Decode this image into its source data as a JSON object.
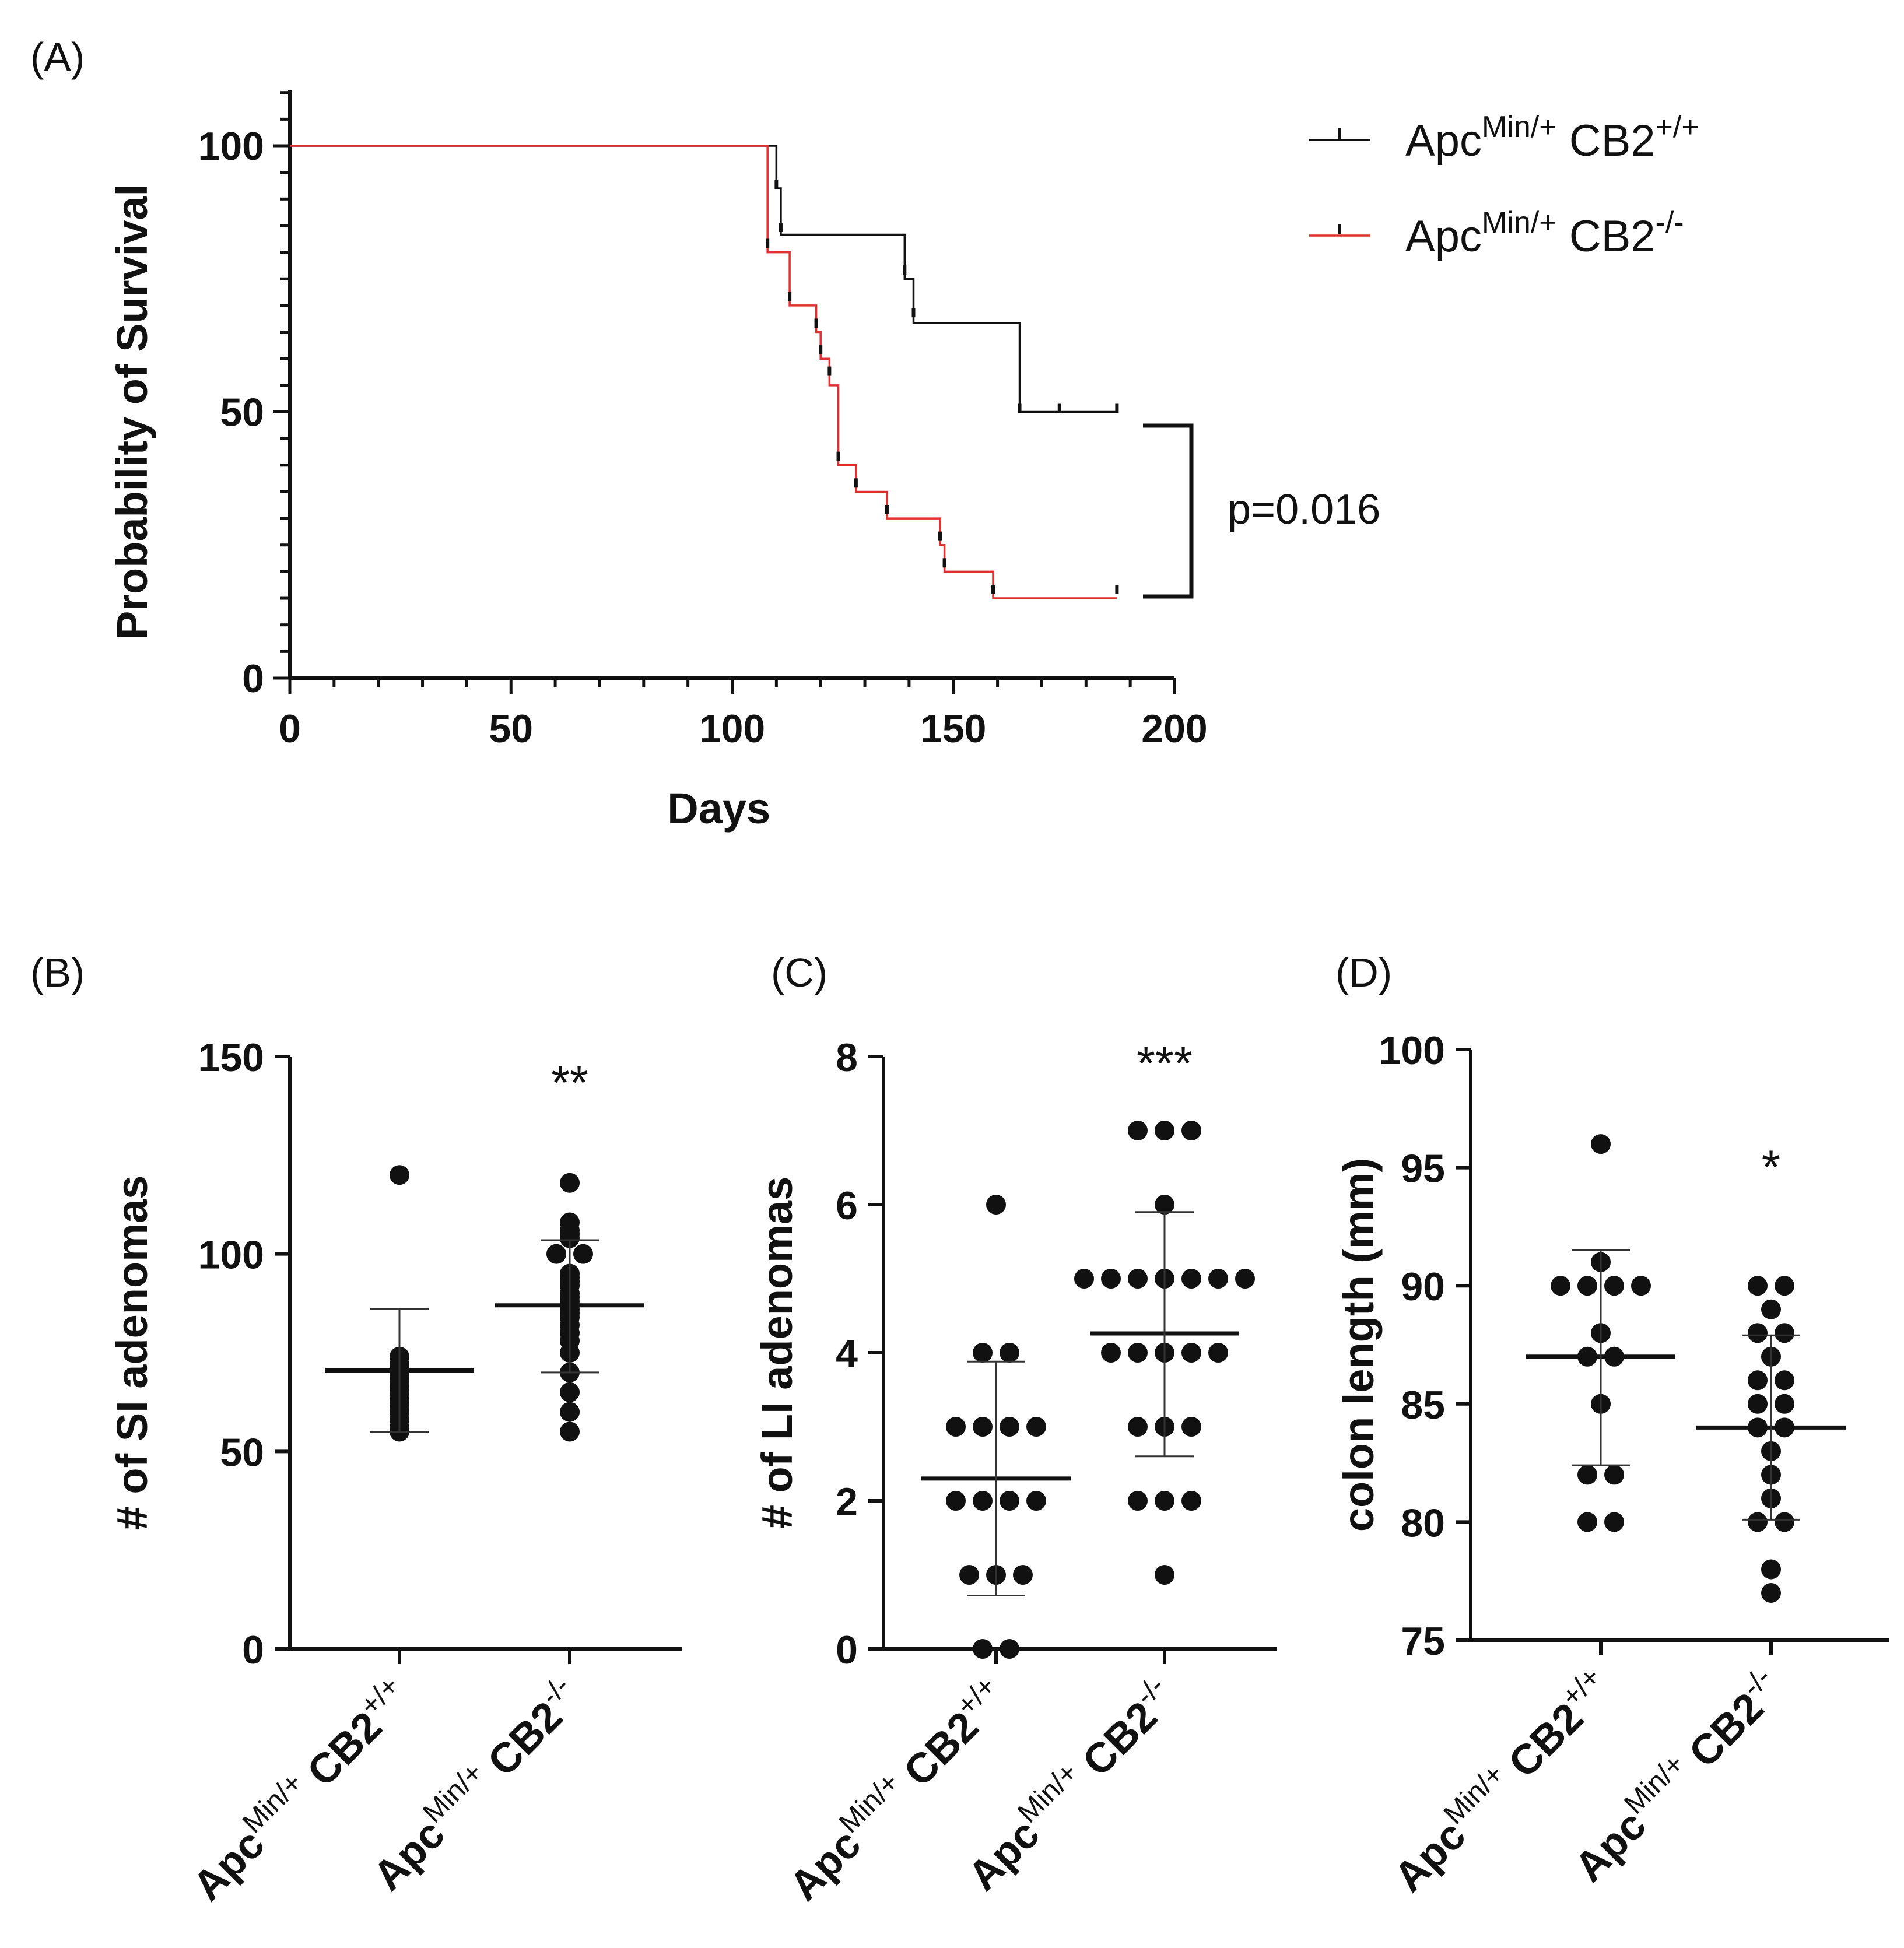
{
  "chart_data": [
    {
      "panel": "(A)",
      "type": "line",
      "subtype": "kaplan-meier",
      "xlabel": "Days",
      "ylabel": "Probability of Survival",
      "xlim": [
        0,
        200
      ],
      "ylim": [
        0,
        100
      ],
      "xticks": [
        0,
        50,
        100,
        150,
        200
      ],
      "yticks": [
        0,
        50,
        100
      ],
      "legend": "top-right",
      "annotation": "p=0.016",
      "series": [
        {
          "name_base": "Apc",
          "name_sup1": "Min/+",
          "name_mid": " CB2",
          "name_sup2": "+/+",
          "color": "#111111",
          "steps": [
            [
              0,
              100
            ],
            [
              110,
              100
            ],
            [
              110,
              92
            ],
            [
              111,
              92
            ],
            [
              111,
              83.3
            ],
            [
              139,
              83.3
            ],
            [
              139,
              75
            ],
            [
              141,
              75
            ],
            [
              141,
              66.7
            ],
            [
              165,
              66.7
            ],
            [
              165,
              50
            ],
            [
              187,
              50
            ]
          ],
          "censored": [
            [
              110,
              92
            ],
            [
              111,
              84
            ],
            [
              139,
              76
            ],
            [
              141,
              68
            ],
            [
              165,
              50
            ],
            [
              174,
              50
            ],
            [
              187,
              50
            ]
          ]
        },
        {
          "name_base": "Apc",
          "name_sup1": "Min/+",
          "name_mid": " CB2",
          "name_sup2": "-/-",
          "color": "#e03030",
          "steps": [
            [
              0,
              100
            ],
            [
              108,
              100
            ],
            [
              108,
              80
            ],
            [
              113,
              80
            ],
            [
              113,
              70
            ],
            [
              119,
              70
            ],
            [
              119,
              65
            ],
            [
              120,
              65
            ],
            [
              120,
              60
            ],
            [
              122,
              60
            ],
            [
              122,
              55
            ],
            [
              124,
              55
            ],
            [
              124,
              40
            ],
            [
              128,
              40
            ],
            [
              128,
              35
            ],
            [
              135,
              35
            ],
            [
              135,
              30
            ],
            [
              147,
              30
            ],
            [
              147,
              25
            ],
            [
              148,
              25
            ],
            [
              148,
              20
            ],
            [
              159,
              20
            ],
            [
              159,
              15
            ],
            [
              187,
              15
            ]
          ],
          "censored": [
            [
              108,
              81
            ],
            [
              113,
              71
            ],
            [
              119,
              66
            ],
            [
              120,
              61
            ],
            [
              122,
              57
            ],
            [
              124,
              41
            ],
            [
              128,
              36
            ],
            [
              135,
              31
            ],
            [
              147,
              26
            ],
            [
              148,
              21
            ],
            [
              159,
              16
            ],
            [
              187,
              16
            ]
          ]
        }
      ]
    },
    {
      "panel": "(B)",
      "type": "scatter",
      "ylabel": "# of SI adenomas",
      "ylim": [
        0,
        150
      ],
      "yticks": [
        0,
        50,
        100,
        150
      ],
      "categories": [
        "CB2+/+",
        "CB2-/-"
      ],
      "significance": [
        "",
        "**"
      ],
      "groups": [
        {
          "values": [
            120,
            72,
            68,
            66,
            65,
            63,
            62,
            60,
            58,
            56,
            55,
            70,
            74,
            67,
            61,
            69
          ],
          "mean": 70.5,
          "sd_low": 55,
          "sd_high": 86
        },
        {
          "values": [
            118,
            108,
            106,
            105,
            104,
            100,
            95,
            94,
            92,
            90,
            89,
            88,
            87,
            86,
            85,
            84,
            82,
            80,
            78,
            75,
            70,
            65,
            60,
            55,
            100,
            93
          ],
          "mean": 87,
          "sd_low": 70,
          "sd_high": 103.5
        }
      ]
    },
    {
      "panel": "(C)",
      "type": "scatter",
      "ylabel": "# of  LI adenomas",
      "ylim": [
        0,
        8
      ],
      "yticks": [
        0,
        2,
        4,
        6,
        8
      ],
      "categories": [
        "CB2+/+",
        "CB2-/-"
      ],
      "significance": [
        "",
        "***"
      ],
      "groups": [
        {
          "values": [
            6,
            4,
            4,
            3,
            3,
            3,
            3,
            2,
            2,
            2,
            2,
            1,
            1,
            1,
            0,
            0
          ],
          "mean": 2.3,
          "sd_low": 0.72,
          "sd_high": 3.88
        },
        {
          "values": [
            7,
            7,
            7,
            6,
            5,
            5,
            5,
            5,
            5,
            5,
            5,
            4,
            4,
            4,
            4,
            4,
            3,
            3,
            3,
            2,
            2,
            2,
            1
          ],
          "mean": 4.26,
          "sd_low": 2.6,
          "sd_high": 5.9
        }
      ]
    },
    {
      "panel": "(D)",
      "type": "scatter",
      "ylabel": "colon length (mm)",
      "ylim": [
        75,
        100
      ],
      "yticks": [
        75,
        80,
        85,
        90,
        95,
        100
      ],
      "categories": [
        "CB2+/+",
        "CB2-/-"
      ],
      "significance": [
        "",
        "*"
      ],
      "groups": [
        {
          "values": [
            96,
            91,
            90,
            90,
            90,
            90,
            88,
            87,
            87,
            85,
            82,
            82,
            80,
            80
          ],
          "mean": 87,
          "sd_low": 82.4,
          "sd_high": 91.5
        },
        {
          "values": [
            90,
            90,
            89,
            88,
            88,
            87,
            86,
            86,
            85,
            85,
            84,
            84,
            83,
            82,
            81,
            80,
            80,
            78,
            77
          ],
          "mean": 84,
          "sd_low": 80.1,
          "sd_high": 87.9
        }
      ]
    }
  ],
  "xcat_labels": [
    {
      "base": "Apc",
      "sup1": "Min/+",
      "mid": " CB2",
      "sup2": "+/+"
    },
    {
      "base": "Apc",
      "sup1": "Min/+",
      "mid": " CB2",
      "sup2": "-/-"
    }
  ]
}
